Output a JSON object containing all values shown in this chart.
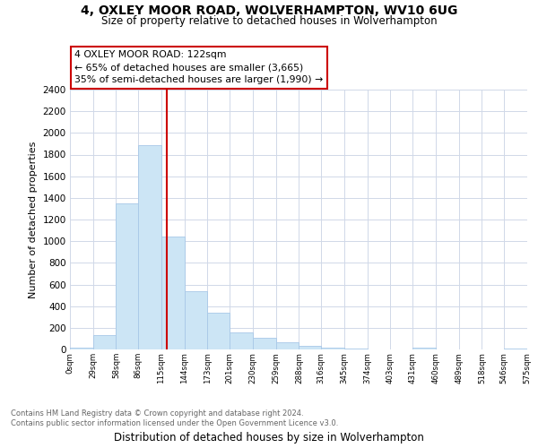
{
  "title1": "4, OXLEY MOOR ROAD, WOLVERHAMPTON, WV10 6UG",
  "title2": "Size of property relative to detached houses in Wolverhampton",
  "xlabel": "Distribution of detached houses by size in Wolverhampton",
  "ylabel": "Number of detached properties",
  "bar_color": "#cce5f5",
  "bar_edge_color": "#a8c8e8",
  "vline_color": "#cc0000",
  "vline_x": 122,
  "annotation_text": "4 OXLEY MOOR ROAD: 122sqm\n← 65% of detached houses are smaller (3,665)\n35% of semi-detached houses are larger (1,990) →",
  "annotation_box_color": "#ffffff",
  "annotation_box_edge_color": "#cc0000",
  "bin_edges": [
    0,
    29,
    58,
    86,
    115,
    144,
    173,
    201,
    230,
    259,
    288,
    316,
    345,
    374,
    403,
    431,
    460,
    489,
    518,
    546,
    575
  ],
  "bin_counts": [
    15,
    135,
    1350,
    1890,
    1045,
    540,
    340,
    160,
    110,
    65,
    35,
    20,
    10,
    0,
    0,
    15,
    0,
    0,
    0,
    10
  ],
  "ylim": [
    0,
    2400
  ],
  "yticks": [
    0,
    200,
    400,
    600,
    800,
    1000,
    1200,
    1400,
    1600,
    1800,
    2000,
    2200,
    2400
  ],
  "xtick_labels": [
    "0sqm",
    "29sqm",
    "58sqm",
    "86sqm",
    "115sqm",
    "144sqm",
    "173sqm",
    "201sqm",
    "230sqm",
    "259sqm",
    "288sqm",
    "316sqm",
    "345sqm",
    "374sqm",
    "403sqm",
    "431sqm",
    "460sqm",
    "489sqm",
    "518sqm",
    "546sqm",
    "575sqm"
  ],
  "footer_text": "Contains HM Land Registry data © Crown copyright and database right 2024.\nContains public sector information licensed under the Open Government Licence v3.0.",
  "background_color": "#ffffff",
  "grid_color": "#d0d8e8"
}
